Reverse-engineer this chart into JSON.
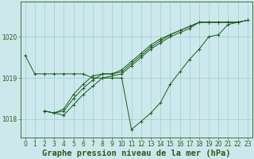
{
  "title": "Graphe pression niveau de la mer (hPa)",
  "bg_color": "#cce8ec",
  "grid_color": "#9ecdd4",
  "line_color": "#1a5c1a",
  "xlim": [
    -0.5,
    23.5
  ],
  "ylim": [
    1017.55,
    1020.85
  ],
  "yticks": [
    1018,
    1019,
    1020
  ],
  "xticks": [
    0,
    1,
    2,
    3,
    4,
    5,
    6,
    7,
    8,
    9,
    10,
    11,
    12,
    13,
    14,
    15,
    16,
    17,
    18,
    19,
    20,
    21,
    22,
    23
  ],
  "series": [
    {
      "x": [
        0,
        1,
        2,
        3,
        4,
        5,
        6,
        7,
        8,
        9,
        10,
        11,
        12,
        13,
        14,
        15,
        16,
        17,
        18,
        19,
        20,
        21,
        22
      ],
      "y": [
        1019.55,
        1019.1,
        1019.1,
        1019.1,
        1019.1,
        1019.1,
        1019.1,
        1019.0,
        1019.0,
        1019.0,
        1019.0,
        1017.75,
        1017.95,
        1018.15,
        1018.4,
        1018.85,
        1019.15,
        1019.45,
        1019.7,
        1020.0,
        1020.05,
        1020.3,
        1020.35
      ]
    },
    {
      "x": [
        2,
        3,
        4,
        5,
        6,
        7,
        8,
        9,
        10,
        11,
        12,
        13,
        14,
        15,
        16,
        17,
        18,
        19,
        20,
        21,
        22,
        23
      ],
      "y": [
        1018.2,
        1018.15,
        1018.1,
        1018.35,
        1018.6,
        1018.8,
        1019.0,
        1019.05,
        1019.1,
        1019.3,
        1019.5,
        1019.7,
        1019.85,
        1020.0,
        1020.1,
        1020.2,
        1020.35,
        1020.35,
        1020.35,
        1020.35,
        1020.35,
        1020.4
      ]
    },
    {
      "x": [
        2,
        3,
        4,
        5,
        6,
        7,
        8,
        9,
        10,
        11,
        12,
        13,
        14,
        15,
        16,
        17,
        18,
        19,
        20,
        21,
        22,
        23
      ],
      "y": [
        1018.2,
        1018.15,
        1018.2,
        1018.5,
        1018.75,
        1018.95,
        1019.1,
        1019.1,
        1019.15,
        1019.35,
        1019.55,
        1019.75,
        1019.9,
        1020.05,
        1020.15,
        1020.25,
        1020.35,
        1020.35,
        1020.35,
        1020.35,
        1020.35,
        1020.4
      ]
    },
    {
      "x": [
        2,
        3,
        4,
        5,
        6,
        7,
        8,
        9,
        10,
        11,
        12,
        13,
        14,
        15,
        16,
        17,
        18,
        19,
        20,
        21,
        22,
        23
      ],
      "y": [
        1018.2,
        1018.15,
        1018.25,
        1018.6,
        1018.85,
        1019.05,
        1019.1,
        1019.1,
        1019.2,
        1019.4,
        1019.6,
        1019.8,
        1019.95,
        1020.05,
        1020.15,
        1020.25,
        1020.35,
        1020.35,
        1020.35,
        1020.35,
        1020.35,
        1020.4
      ]
    }
  ],
  "axes_color": "#2d5a1a",
  "tick_fontsize": 5.5,
  "label_fontsize": 7.5
}
